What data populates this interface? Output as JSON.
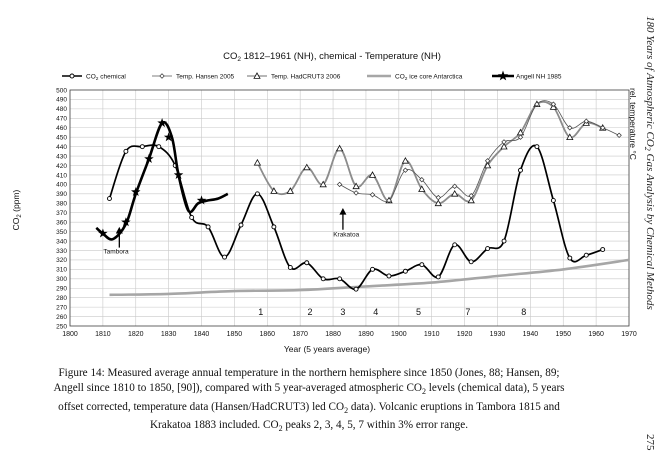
{
  "page_number": "275",
  "side_title": {
    "prefix": "180 Years of Atmospheric CO",
    "sub": "2",
    "suffix": " Gas Analysis by Chemical Methods"
  },
  "caption": {
    "line1": "Figure 14: Measured average annual temperature in the northern hemisphere since 1850 (Jones, 88; Hansen, 89;",
    "line2a": "Angell since 1810 to 1850, [90]), compared with 5 year-averaged atmospheric CO",
    "line2sub": "2",
    "line2b": " levels (chemical data), 5 years",
    "line3a": "offset corrected, temperature data (Hansen/HadCRUT3) led CO",
    "line3sub": "2",
    "line3b": " data). Volcanic eruptions in Tambora 1815 and",
    "line4a": "Krakatoa 1883 included. CO",
    "line4sub": "2",
    "line4b": " peaks 2, 3, 4, 5, 7 within 3% error range."
  },
  "chart_data": {
    "type": "line",
    "title_prefix": "CO",
    "title_sub": "2",
    "title_suffix": " 1812–1961 (NH), chemical - Temperature (NH)",
    "xlabel": "Year (5 years average)",
    "ylabel_prefix": "CO",
    "ylabel_sub": "2",
    "ylabel_suffix": " (ppm)",
    "y2label": "rel. temperature °C",
    "xlim": [
      1800,
      1970
    ],
    "ylim": [
      250,
      500
    ],
    "x_ticks": [
      1800,
      1810,
      1820,
      1830,
      1840,
      1850,
      1860,
      1870,
      1880,
      1890,
      1900,
      1910,
      1920,
      1930,
      1940,
      1950,
      1960,
      1970
    ],
    "y_ticks": [
      250,
      260,
      270,
      280,
      290,
      300,
      310,
      320,
      330,
      340,
      350,
      360,
      370,
      380,
      390,
      400,
      410,
      420,
      430,
      440,
      450,
      460,
      470,
      480,
      490,
      500
    ],
    "legend": [
      {
        "label_prefix": "CO",
        "label_sub": "2",
        "label_suffix": " chemical",
        "style": "line-circle"
      },
      {
        "label_prefix": "Temp. Hansen 2005",
        "label_sub": "",
        "label_suffix": "",
        "style": "diamond"
      },
      {
        "label_prefix": "Temp. HadCRUT3 2006",
        "label_sub": "",
        "label_suffix": "",
        "style": "triangle"
      },
      {
        "label_prefix": "CO",
        "label_sub": "2",
        "label_suffix": " ice core Antarctica",
        "style": "gray"
      },
      {
        "label_prefix": "Angell NH 1985",
        "label_sub": "",
        "label_suffix": "",
        "style": "star"
      }
    ],
    "series": [
      {
        "name": "CO2 chemical",
        "color": "#000000",
        "x": [
          1812,
          1817,
          1822,
          1827,
          1832,
          1837,
          1842,
          1847,
          1852,
          1857,
          1862,
          1867,
          1872,
          1877,
          1882,
          1887,
          1892,
          1897,
          1902,
          1907,
          1912,
          1917,
          1922,
          1927,
          1932,
          1937,
          1942,
          1947,
          1952,
          1957,
          1962
        ],
        "y": [
          385,
          435,
          440,
          440,
          420,
          365,
          355,
          323,
          357,
          390,
          355,
          312,
          317,
          300,
          300,
          289,
          310,
          303,
          308,
          315,
          302,
          336,
          318,
          332,
          340,
          415,
          440,
          383,
          322,
          325,
          331
        ]
      },
      {
        "name": "Temp. Hansen 2005",
        "color": "#555555",
        "x": [
          1882,
          1887,
          1892,
          1897,
          1902,
          1907,
          1912,
          1917,
          1922,
          1927,
          1932,
          1937,
          1942,
          1947,
          1952,
          1957,
          1962,
          1967
        ],
        "y": [
          400,
          391,
          389,
          383,
          415,
          405,
          386,
          398,
          388,
          425,
          445,
          450,
          485,
          485,
          460,
          467,
          460,
          452
        ]
      },
      {
        "name": "Temp. HadCRUT3 2006",
        "color": "#111111",
        "x": [
          1857,
          1862,
          1867,
          1872,
          1877,
          1882,
          1887,
          1892,
          1897,
          1902,
          1907,
          1912,
          1917,
          1922,
          1927,
          1932,
          1937,
          1942,
          1947,
          1952,
          1957,
          1962
        ],
        "y": [
          423,
          393,
          393,
          418,
          400,
          438,
          398,
          410,
          383,
          425,
          395,
          380,
          390,
          383,
          420,
          440,
          455,
          485,
          482,
          450,
          465,
          460
        ]
      },
      {
        "name": "CO2 ice core Antarctica",
        "color": "#a6a6a6",
        "x": [
          1812,
          1830,
          1850,
          1870,
          1890,
          1910,
          1930,
          1950,
          1970
        ],
        "y": [
          283,
          284,
          287,
          288,
          292,
          296,
          303,
          310,
          320
        ]
      },
      {
        "name": "Angell NH 1985",
        "color": "#000000",
        "x": [
          1808,
          1810,
          1813,
          1817,
          1820,
          1824,
          1828,
          1831,
          1833,
          1836,
          1839,
          1842,
          1845,
          1848
        ],
        "y": [
          354,
          348,
          342,
          358,
          390,
          427,
          465,
          450,
          410,
          372,
          380,
          383,
          385,
          390
        ]
      }
    ],
    "star_markers": {
      "x": [
        1810,
        1817,
        1820,
        1824,
        1828,
        1830,
        1833,
        1840
      ],
      "y": [
        348,
        360,
        392,
        427,
        465,
        450,
        410,
        383
      ]
    },
    "annotations": [
      {
        "text": "Tambora",
        "x": 1815,
        "y": 332
      },
      {
        "text": "Krakatoa",
        "x": 1883,
        "y": 348
      },
      {
        "text": "1",
        "x": 1858,
        "y": 265
      },
      {
        "text": "2",
        "x": 1873,
        "y": 265
      },
      {
        "text": "3",
        "x": 1883,
        "y": 265
      },
      {
        "text": "4",
        "x": 1893,
        "y": 265
      },
      {
        "text": "5",
        "x": 1906,
        "y": 265
      },
      {
        "text": "7",
        "x": 1921,
        "y": 265
      },
      {
        "text": "8",
        "x": 1938,
        "y": 265
      }
    ]
  }
}
